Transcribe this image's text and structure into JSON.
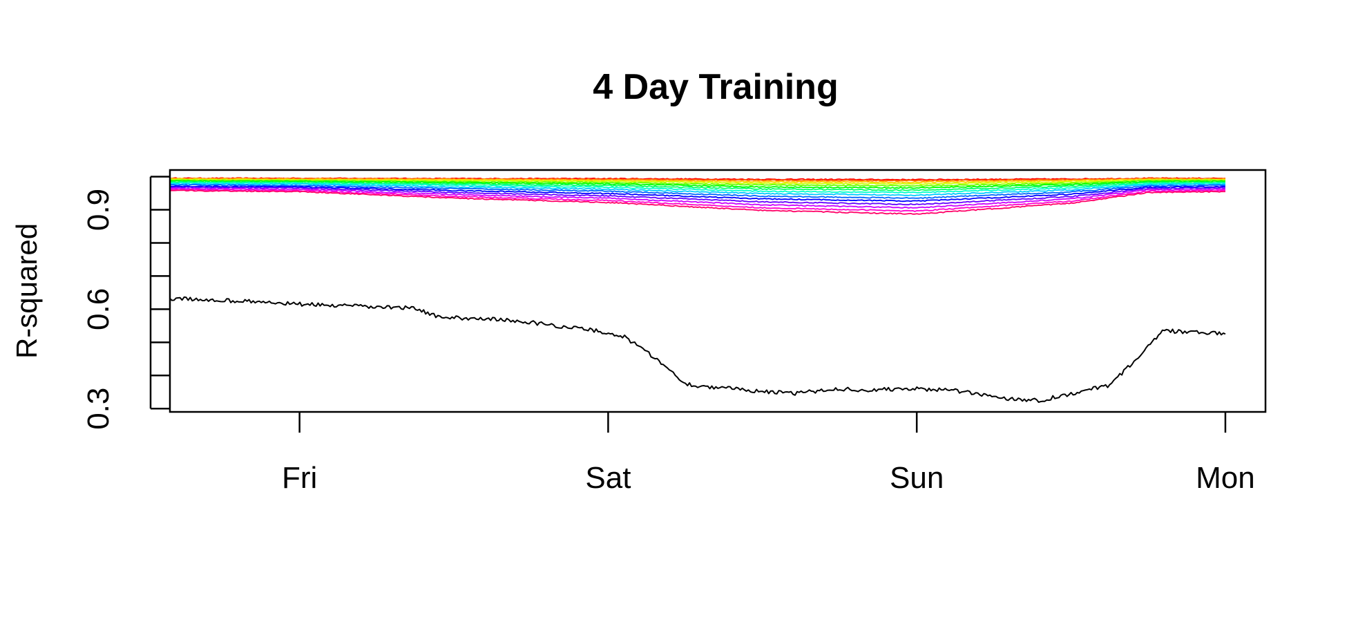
{
  "chart_data": {
    "type": "line",
    "title": "4 Day Training",
    "xlabel": "",
    "ylabel": "R-squared",
    "x_unit": "days",
    "xlim": [
      -0.42,
      3.13
    ],
    "ylim": [
      0.29,
      1.02
    ],
    "x_ticks": [
      {
        "value": 0,
        "label": "Fri"
      },
      {
        "value": 1,
        "label": "Sat"
      },
      {
        "value": 2,
        "label": "Sun"
      },
      {
        "value": 3,
        "label": "Mon"
      }
    ],
    "y_ticks_labeled": [
      {
        "value": 0.3,
        "label": "0.3"
      },
      {
        "value": 0.6,
        "label": "0.6"
      },
      {
        "value": 0.9,
        "label": "0.9"
      }
    ],
    "y_ticks_minor": [
      0.4,
      0.5,
      0.7,
      0.8,
      1.0
    ],
    "grid": false,
    "legend": "none",
    "series": [
      {
        "color": "#000000",
        "x": [
          -0.42,
          -0.2,
          0.0,
          0.2,
          0.38,
          0.45,
          0.6,
          0.75,
          0.85,
          0.95,
          1.05,
          1.15,
          1.25,
          1.3,
          1.45,
          1.6,
          1.75,
          1.85,
          1.95,
          2.1,
          2.3,
          2.4,
          2.55,
          2.62,
          2.68,
          2.8,
          3.0
        ],
        "y": [
          0.632,
          0.625,
          0.615,
          0.608,
          0.603,
          0.575,
          0.572,
          0.56,
          0.548,
          0.537,
          0.518,
          0.455,
          0.375,
          0.368,
          0.356,
          0.345,
          0.36,
          0.355,
          0.36,
          0.357,
          0.33,
          0.325,
          0.355,
          0.37,
          0.42,
          0.535,
          0.525
        ]
      },
      {
        "color": "#FF0000",
        "x": [
          -0.42,
          0.0,
          0.5,
          1.0,
          1.5,
          2.0,
          2.5,
          2.75,
          3.0
        ],
        "y": [
          0.995,
          0.995,
          0.994,
          0.994,
          0.992,
          0.991,
          0.993,
          0.995,
          0.995
        ]
      },
      {
        "color": "#FF6600",
        "x": [
          -0.42,
          0.0,
          0.5,
          1.0,
          1.5,
          2.0,
          2.5,
          2.75,
          3.0
        ],
        "y": [
          0.994,
          0.994,
          0.993,
          0.992,
          0.989,
          0.988,
          0.991,
          0.994,
          0.994
        ]
      },
      {
        "color": "#FFCC00",
        "x": [
          -0.42,
          0.0,
          0.5,
          1.0,
          1.5,
          2.0,
          2.5,
          2.75,
          3.0
        ],
        "y": [
          0.993,
          0.992,
          0.991,
          0.989,
          0.985,
          0.983,
          0.988,
          0.992,
          0.992
        ]
      },
      {
        "color": "#CCFF00",
        "x": [
          -0.42,
          0.0,
          0.5,
          1.0,
          1.5,
          2.0,
          2.5,
          2.75,
          3.0
        ],
        "y": [
          0.991,
          0.99,
          0.988,
          0.986,
          0.98,
          0.978,
          0.984,
          0.99,
          0.99
        ]
      },
      {
        "color": "#66FF00",
        "x": [
          -0.42,
          0.0,
          0.5,
          1.0,
          1.5,
          2.0,
          2.5,
          2.75,
          3.0
        ],
        "y": [
          0.989,
          0.988,
          0.985,
          0.982,
          0.975,
          0.972,
          0.98,
          0.988,
          0.988
        ]
      },
      {
        "color": "#00FF00",
        "x": [
          -0.42,
          0.0,
          0.5,
          1.0,
          1.5,
          2.0,
          2.5,
          2.75,
          3.0
        ],
        "y": [
          0.987,
          0.986,
          0.982,
          0.978,
          0.969,
          0.966,
          0.976,
          0.985,
          0.986
        ]
      },
      {
        "color": "#00FF66",
        "x": [
          -0.42,
          0.0,
          0.5,
          1.0,
          1.5,
          2.0,
          2.5,
          2.75,
          3.0
        ],
        "y": [
          0.984,
          0.983,
          0.978,
          0.973,
          0.963,
          0.959,
          0.971,
          0.982,
          0.983
        ]
      },
      {
        "color": "#00FFCC",
        "x": [
          -0.42,
          0.0,
          0.5,
          1.0,
          1.5,
          2.0,
          2.5,
          2.75,
          3.0
        ],
        "y": [
          0.981,
          0.98,
          0.974,
          0.968,
          0.956,
          0.952,
          0.966,
          0.979,
          0.98
        ]
      },
      {
        "color": "#00CCFF",
        "x": [
          -0.42,
          0.0,
          0.5,
          1.0,
          1.5,
          2.0,
          2.5,
          2.75,
          3.0
        ],
        "y": [
          0.978,
          0.977,
          0.969,
          0.962,
          0.949,
          0.944,
          0.96,
          0.976,
          0.977
        ]
      },
      {
        "color": "#0066FF",
        "x": [
          -0.42,
          0.0,
          0.5,
          1.0,
          1.5,
          2.0,
          2.5,
          2.75,
          3.0
        ],
        "y": [
          0.975,
          0.973,
          0.964,
          0.956,
          0.941,
          0.935,
          0.954,
          0.972,
          0.974
        ]
      },
      {
        "color": "#0000FF",
        "x": [
          -0.42,
          0.0,
          0.5,
          1.0,
          1.5,
          2.0,
          2.5,
          2.75,
          3.0
        ],
        "y": [
          0.971,
          0.969,
          0.958,
          0.949,
          0.933,
          0.926,
          0.947,
          0.968,
          0.97
        ]
      },
      {
        "color": "#6600FF",
        "x": [
          -0.42,
          0.0,
          0.5,
          1.0,
          1.5,
          2.0,
          2.5,
          2.75,
          3.0
        ],
        "y": [
          0.968,
          0.966,
          0.952,
          0.942,
          0.924,
          0.916,
          0.94,
          0.964,
          0.966
        ]
      },
      {
        "color": "#CC00FF",
        "x": [
          -0.42,
          0.0,
          0.5,
          1.0,
          1.5,
          2.0,
          2.5,
          2.75,
          3.0
        ],
        "y": [
          0.964,
          0.962,
          0.946,
          0.935,
          0.915,
          0.906,
          0.933,
          0.96,
          0.962
        ]
      },
      {
        "color": "#FF00CC",
        "x": [
          -0.42,
          0.0,
          0.5,
          1.0,
          1.5,
          2.0,
          2.5,
          2.75,
          3.0
        ],
        "y": [
          0.961,
          0.958,
          0.94,
          0.928,
          0.906,
          0.896,
          0.926,
          0.956,
          0.958
        ]
      },
      {
        "color": "#FF0066",
        "x": [
          -0.42,
          0.0,
          0.5,
          1.0,
          1.5,
          2.0,
          2.5,
          2.75,
          3.0
        ],
        "y": [
          0.958,
          0.955,
          0.935,
          0.922,
          0.898,
          0.887,
          0.92,
          0.952,
          0.955
        ]
      }
    ]
  }
}
